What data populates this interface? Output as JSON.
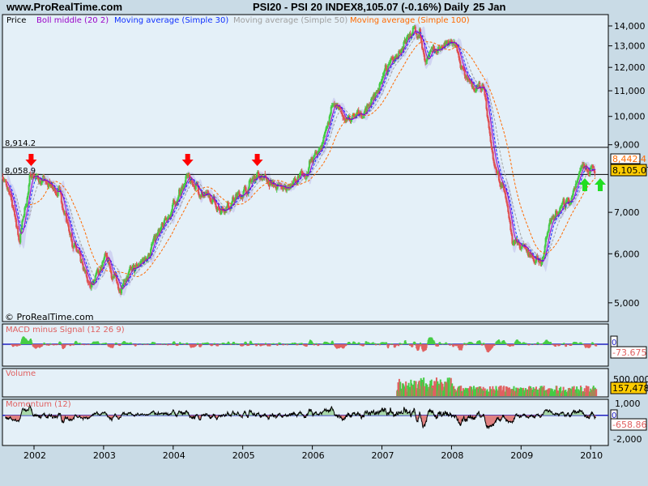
{
  "header": {
    "site": "www.ProRealTime.com",
    "instrument": "PSI20 - PSI 20 INDEX",
    "quote": "8,105.07 (-0.16%)",
    "period": "Daily",
    "date": "25 Jan"
  },
  "legend": [
    {
      "label": "Price",
      "color": "#000000"
    },
    {
      "label": "Boll middle (20 2)",
      "color": "#9a00c8"
    },
    {
      "label": "Moving average (Simple 30)",
      "color": "#1030ff"
    },
    {
      "label": "Moving average (Simple 50)",
      "color": "#a0a0a0"
    },
    {
      "label": "Moving average (Simple 100)",
      "color": "#ff6a00"
    }
  ],
  "copyright": "© ProRealTime.com",
  "chart_data": [
    {
      "type": "candlestick",
      "scale": "log",
      "ylim": [
        5000,
        14000
      ],
      "y_ticks": [
        "14,000",
        "13,000",
        "12,000",
        "11,000",
        "10,000",
        "9,000",
        "7,000",
        "6,000",
        "5,000"
      ],
      "y_tick_values": [
        14000,
        13000,
        12000,
        11000,
        10000,
        9000,
        7000,
        6000,
        5000
      ],
      "x_ticks": [
        "2002",
        "2003",
        "2004",
        "2005",
        "2006",
        "2007",
        "2008",
        "2009",
        "2010"
      ],
      "price_points": [
        [
          "2001-07",
          8070
        ],
        [
          "2001-09",
          7040
        ],
        [
          "2001-10",
          6300
        ],
        [
          "2001-12",
          8100
        ],
        [
          "2002-03",
          7700
        ],
        [
          "2002-05",
          7500
        ],
        [
          "2002-07",
          6340
        ],
        [
          "2002-10",
          5300
        ],
        [
          "2003-01",
          5900
        ],
        [
          "2003-03",
          5300
        ],
        [
          "2003-07",
          5800
        ],
        [
          "2003-11",
          6700
        ],
        [
          "2004-03",
          8000
        ],
        [
          "2004-06",
          7400
        ],
        [
          "2004-09",
          7100
        ],
        [
          "2005-01",
          7600
        ],
        [
          "2005-03",
          8100
        ],
        [
          "2005-07",
          7600
        ],
        [
          "2005-11",
          8000
        ],
        [
          "2006-02",
          8960
        ],
        [
          "2006-04",
          10400
        ],
        [
          "2006-07",
          9800
        ],
        [
          "2006-10",
          10300
        ],
        [
          "2007-01",
          11700
        ],
        [
          "2007-05",
          13600
        ],
        [
          "2007-07",
          13650
        ],
        [
          "2007-08",
          12300
        ],
        [
          "2007-10",
          12900
        ],
        [
          "2008-01",
          13100
        ],
        [
          "2008-03",
          11300
        ],
        [
          "2008-06",
          11000
        ],
        [
          "2008-08",
          8200
        ],
        [
          "2008-10",
          7400
        ],
        [
          "2008-11",
          6250
        ],
        [
          "2009-01",
          6080
        ],
        [
          "2009-04",
          5800
        ],
        [
          "2009-06",
          7000
        ],
        [
          "2009-09",
          7400
        ],
        [
          "2009-11",
          8250
        ],
        [
          "2010-01",
          8105
        ]
      ],
      "horizontal_lines": [
        {
          "label": "8,914.2",
          "value": 8914.2
        },
        {
          "label": "8,058.9",
          "value": 8058.9
        }
      ],
      "markers": [
        {
          "type": "down-arrow",
          "color": "#ff0000",
          "date": "2001-12"
        },
        {
          "type": "down-arrow",
          "color": "#ff0000",
          "date": "2004-03"
        },
        {
          "type": "down-arrow",
          "color": "#ff0000",
          "date": "2005-03"
        },
        {
          "type": "up-arrow",
          "color": "#22dd22",
          "date": "2009-12"
        },
        {
          "type": "up-arrow",
          "color": "#22dd22",
          "date": "2010-01"
        }
      ],
      "last_values": {
        "bollinger": "8,442.4",
        "price": "8,105.07"
      },
      "colors": {
        "up": "#44cc44",
        "down": "#e05050",
        "band": "#c8c8f0"
      }
    },
    {
      "type": "bar",
      "title": "MACD minus Signal (12 26 9)",
      "y_ticks": [
        "0"
      ],
      "last_value": "-73.675",
      "colors": {
        "positive": "#44cc44",
        "negative": "#e06060",
        "zero_line": "#2020c0"
      }
    },
    {
      "type": "bar",
      "title": "Volume",
      "y_ticks": [
        "500,000"
      ],
      "last_value": "157,478"
    },
    {
      "type": "area",
      "title": "Momentum (12)",
      "y_ticks": [
        "1,000",
        "0",
        "-2,000"
      ],
      "last_value": "-658.86"
    }
  ]
}
